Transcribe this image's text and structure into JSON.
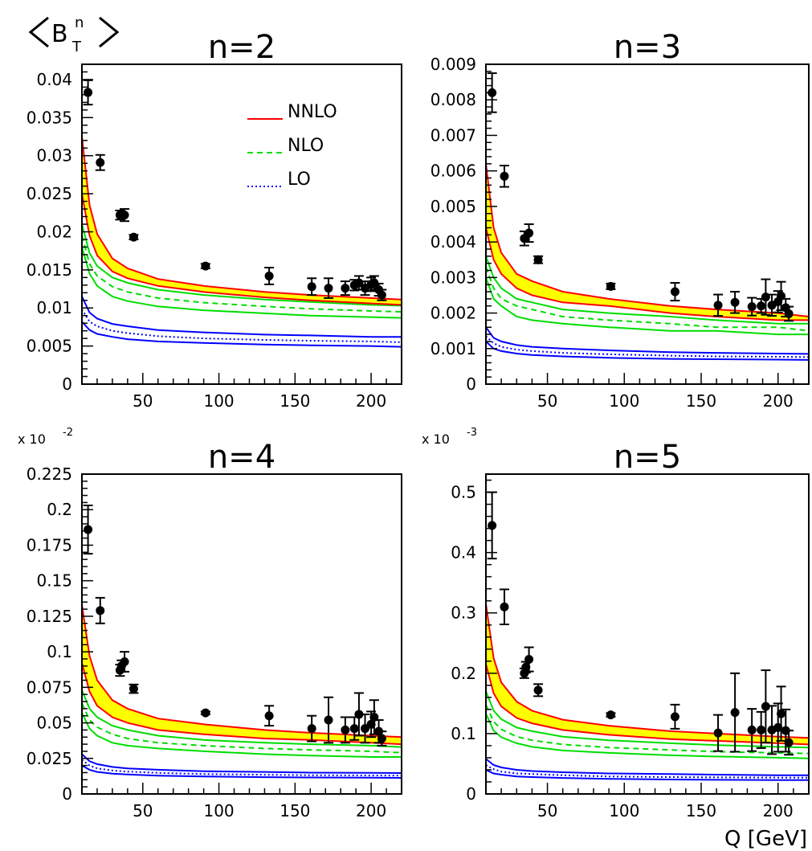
{
  "figure": {
    "ylabel_main": "B",
    "ylabel_sub": "T",
    "ylabel_sup": "n",
    "xlabel": "Q [GeV]",
    "legend": [
      {
        "label": "NNLO",
        "color": "#ff0000",
        "dash": "solid"
      },
      {
        "label": "NLO",
        "color": "#00dd00",
        "dash": "dashed"
      },
      {
        "label": "LO",
        "color": "#0000ff",
        "dash": "dotted"
      }
    ],
    "colors": {
      "band": "#ffff00",
      "nnlo": "#ff0000",
      "nlo": "#00dd00",
      "lo": "#0000ff",
      "data": "#000000"
    }
  },
  "chart_data": [
    {
      "type": "line",
      "title": "n=2",
      "exponent_label": "",
      "xlim": [
        10,
        220
      ],
      "ylim": [
        0,
        0.042
      ],
      "x_ticks": [
        50,
        100,
        150,
        200
      ],
      "x_tick_labels": [
        "50",
        "100",
        "150",
        "200"
      ],
      "y_ticks": [
        0,
        0.005,
        0.01,
        0.015,
        0.02,
        0.025,
        0.03,
        0.035,
        0.04
      ],
      "y_tick_labels": [
        "0",
        "0.005",
        "0.01",
        "0.015",
        "0.02",
        "0.025",
        "0.03",
        "0.035",
        "0.04"
      ],
      "theory": {
        "x": [
          10,
          15,
          20,
          30,
          40,
          60,
          90,
          130,
          160,
          200,
          220
        ],
        "nnlo_upper": [
          0.0325,
          0.0235,
          0.0197,
          0.0165,
          0.0152,
          0.0138,
          0.0129,
          0.0121,
          0.0117,
          0.0113,
          0.0111
        ],
        "nnlo_lower": [
          0.025,
          0.0195,
          0.0169,
          0.0148,
          0.0139,
          0.0129,
          0.0121,
          0.0114,
          0.011,
          0.0106,
          0.0104
        ],
        "nlo_upper": [
          0.021,
          0.0172,
          0.0155,
          0.014,
          0.0133,
          0.0124,
          0.0117,
          0.0111,
          0.0108,
          0.0104,
          0.0103
        ],
        "nlo_central": [
          0.0195,
          0.0158,
          0.0142,
          0.0128,
          0.0121,
          0.0113,
          0.0107,
          0.0102,
          0.0099,
          0.0096,
          0.0095
        ],
        "nlo_lower": [
          0.018,
          0.0145,
          0.0129,
          0.0115,
          0.0109,
          0.0102,
          0.0097,
          0.0093,
          0.009,
          0.0088,
          0.0087
        ],
        "lo_upper": [
          0.0115,
          0.0094,
          0.0086,
          0.0079,
          0.0076,
          0.0071,
          0.0068,
          0.0065,
          0.0064,
          0.0062,
          0.0062
        ],
        "lo_central": [
          0.0098,
          0.0082,
          0.0076,
          0.007,
          0.0067,
          0.0063,
          0.006,
          0.0058,
          0.0057,
          0.0056,
          0.0055
        ],
        "lo_lower": [
          0.0082,
          0.0071,
          0.0066,
          0.0062,
          0.0059,
          0.0056,
          0.0054,
          0.0052,
          0.0051,
          0.005,
          0.0049
        ]
      },
      "data_points": [
        {
          "x": 14,
          "y": 0.0383,
          "err": 0.0016
        },
        {
          "x": 22,
          "y": 0.0291,
          "err": 0.001
        },
        {
          "x": 35,
          "y": 0.0222,
          "err": 0.0006
        },
        {
          "x": 38,
          "y": 0.0222,
          "err": 0.0008
        },
        {
          "x": 44,
          "y": 0.0193,
          "err": 0.0003
        },
        {
          "x": 91.2,
          "y": 0.0155,
          "err": 0.0003
        },
        {
          "x": 133,
          "y": 0.0142,
          "err": 0.0011
        },
        {
          "x": 161,
          "y": 0.0128,
          "err": 0.0011
        },
        {
          "x": 172,
          "y": 0.0126,
          "err": 0.0013
        },
        {
          "x": 183,
          "y": 0.0126,
          "err": 0.0009
        },
        {
          "x": 189,
          "y": 0.013,
          "err": 0.0007
        },
        {
          "x": 192,
          "y": 0.0133,
          "err": 0.0009
        },
        {
          "x": 196,
          "y": 0.0126,
          "err": 0.0009
        },
        {
          "x": 200,
          "y": 0.0131,
          "err": 0.0009
        },
        {
          "x": 202,
          "y": 0.0133,
          "err": 0.0009
        },
        {
          "x": 205,
          "y": 0.0124,
          "err": 0.0008
        },
        {
          "x": 207,
          "y": 0.0117,
          "err": 0.0007
        }
      ]
    },
    {
      "type": "line",
      "title": "n=3",
      "exponent_label": "",
      "xlim": [
        10,
        220
      ],
      "ylim": [
        0,
        0.009
      ],
      "x_ticks": [
        50,
        100,
        150,
        200
      ],
      "x_tick_labels": [
        "50",
        "100",
        "150",
        "200"
      ],
      "y_ticks": [
        0,
        0.001,
        0.002,
        0.003,
        0.004,
        0.005,
        0.006,
        0.007,
        0.008,
        0.009
      ],
      "y_tick_labels": [
        "0",
        "0.001",
        "0.002",
        "0.003",
        "0.004",
        "0.005",
        "0.006",
        "0.007",
        "0.008",
        "0.009"
      ],
      "theory": {
        "x": [
          10,
          15,
          20,
          30,
          40,
          60,
          90,
          130,
          160,
          200,
          220
        ],
        "nnlo_upper": [
          0.0062,
          0.0044,
          0.0037,
          0.0031,
          0.0029,
          0.0026,
          0.0024,
          0.0022,
          0.0021,
          0.002,
          0.0019
        ],
        "nnlo_lower": [
          0.0044,
          0.0035,
          0.0031,
          0.0027,
          0.0025,
          0.0023,
          0.0022,
          0.002,
          0.0019,
          0.0018,
          0.0018
        ],
        "nlo_upper": [
          0.0036,
          0.003,
          0.0027,
          0.0024,
          0.0023,
          0.0021,
          0.002,
          0.0019,
          0.0018,
          0.0017,
          0.0017
        ],
        "nlo_central": [
          0.0033,
          0.0027,
          0.0024,
          0.0022,
          0.0021,
          0.0019,
          0.0018,
          0.0017,
          0.0016,
          0.0016,
          0.0015
        ],
        "nlo_lower": [
          0.003,
          0.0024,
          0.0022,
          0.0019,
          0.0018,
          0.0017,
          0.0016,
          0.0015,
          0.0015,
          0.0014,
          0.0014
        ],
        "lo_upper": [
          0.0016,
          0.0013,
          0.0012,
          0.0011,
          0.00105,
          0.001,
          0.00095,
          0.0009,
          0.00088,
          0.00086,
          0.00085
        ],
        "lo_central": [
          0.00135,
          0.00115,
          0.00105,
          0.00097,
          0.00093,
          0.00088,
          0.00084,
          0.0008,
          0.00078,
          0.00077,
          0.00076
        ],
        "lo_lower": [
          0.0012,
          0.001,
          0.00093,
          0.00086,
          0.00082,
          0.00078,
          0.00074,
          0.00071,
          0.0007,
          0.00069,
          0.00068
        ]
      },
      "data_points": [
        {
          "x": 14,
          "y": 0.0082,
          "err": 0.00055
        },
        {
          "x": 22,
          "y": 0.00585,
          "err": 0.0003
        },
        {
          "x": 35,
          "y": 0.0041,
          "err": 0.0002
        },
        {
          "x": 38,
          "y": 0.00425,
          "err": 0.00025
        },
        {
          "x": 44,
          "y": 0.0035,
          "err": 0.0001
        },
        {
          "x": 91.2,
          "y": 0.00275,
          "err": 8e-05
        },
        {
          "x": 133,
          "y": 0.0026,
          "err": 0.00025
        },
        {
          "x": 161,
          "y": 0.00222,
          "err": 0.0003
        },
        {
          "x": 172,
          "y": 0.0023,
          "err": 0.0003
        },
        {
          "x": 183,
          "y": 0.00218,
          "err": 0.00025
        },
        {
          "x": 189,
          "y": 0.0022,
          "err": 0.0002
        },
        {
          "x": 192,
          "y": 0.00245,
          "err": 0.0005
        },
        {
          "x": 196,
          "y": 0.00222,
          "err": 0.0003
        },
        {
          "x": 200,
          "y": 0.00232,
          "err": 0.0003
        },
        {
          "x": 202,
          "y": 0.00248,
          "err": 0.0004
        },
        {
          "x": 205,
          "y": 0.00215,
          "err": 0.00025
        },
        {
          "x": 207,
          "y": 0.00198,
          "err": 0.0002
        }
      ]
    },
    {
      "type": "line",
      "title": "n=4",
      "exponent_label": "x 10",
      "exponent_power": "-2",
      "xlim": [
        10,
        220
      ],
      "ylim": [
        0,
        0.225
      ],
      "x_ticks": [
        50,
        100,
        150,
        200
      ],
      "x_tick_labels": [
        "50",
        "100",
        "150",
        "200"
      ],
      "y_ticks": [
        0,
        0.025,
        0.05,
        0.075,
        0.1,
        0.125,
        0.15,
        0.175,
        0.2,
        0.225
      ],
      "y_tick_labels": [
        "0",
        "0.025",
        "0.05",
        "0.075",
        "0.1",
        "0.125",
        "0.15",
        "0.175",
        "0.2",
        "0.225"
      ],
      "theory": {
        "x": [
          10,
          15,
          20,
          30,
          40,
          60,
          90,
          130,
          160,
          200,
          220
        ],
        "nnlo_upper": [
          0.133,
          0.097,
          0.08,
          0.066,
          0.06,
          0.053,
          0.049,
          0.045,
          0.043,
          0.041,
          0.04
        ],
        "nnlo_lower": [
          0.092,
          0.072,
          0.062,
          0.054,
          0.05,
          0.045,
          0.042,
          0.039,
          0.038,
          0.036,
          0.035
        ],
        "nlo_upper": [
          0.073,
          0.06,
          0.054,
          0.048,
          0.045,
          0.041,
          0.038,
          0.036,
          0.035,
          0.034,
          0.033
        ],
        "nlo_central": [
          0.064,
          0.052,
          0.047,
          0.042,
          0.039,
          0.036,
          0.034,
          0.032,
          0.031,
          0.03,
          0.029
        ],
        "nlo_lower": [
          0.057,
          0.046,
          0.041,
          0.036,
          0.034,
          0.032,
          0.03,
          0.028,
          0.027,
          0.026,
          0.026
        ],
        "lo_upper": [
          0.028,
          0.023,
          0.021,
          0.019,
          0.018,
          0.017,
          0.016,
          0.0155,
          0.015,
          0.0148,
          0.0147
        ],
        "lo_central": [
          0.024,
          0.02,
          0.018,
          0.0165,
          0.0157,
          0.0148,
          0.014,
          0.0135,
          0.0132,
          0.013,
          0.0129
        ],
        "lo_lower": [
          0.02,
          0.017,
          0.0155,
          0.0143,
          0.0137,
          0.0129,
          0.0123,
          0.0118,
          0.0116,
          0.0114,
          0.0113
        ]
      },
      "data_points": [
        {
          "x": 14,
          "y": 0.186,
          "err": 0.017
        },
        {
          "x": 22,
          "y": 0.129,
          "err": 0.009
        },
        {
          "x": 35,
          "y": 0.087,
          "err": 0.004
        },
        {
          "x": 36,
          "y": 0.09,
          "err": 0.004
        },
        {
          "x": 38,
          "y": 0.093,
          "err": 0.007
        },
        {
          "x": 44,
          "y": 0.074,
          "err": 0.003
        },
        {
          "x": 91.2,
          "y": 0.057,
          "err": 0.001
        },
        {
          "x": 133,
          "y": 0.055,
          "err": 0.007
        },
        {
          "x": 161,
          "y": 0.046,
          "err": 0.009
        },
        {
          "x": 172,
          "y": 0.052,
          "err": 0.016
        },
        {
          "x": 183,
          "y": 0.045,
          "err": 0.009
        },
        {
          "x": 189,
          "y": 0.046,
          "err": 0.008
        },
        {
          "x": 192,
          "y": 0.056,
          "err": 0.015
        },
        {
          "x": 196,
          "y": 0.046,
          "err": 0.01
        },
        {
          "x": 200,
          "y": 0.049,
          "err": 0.009
        },
        {
          "x": 202,
          "y": 0.054,
          "err": 0.012
        },
        {
          "x": 205,
          "y": 0.044,
          "err": 0.008
        },
        {
          "x": 207,
          "y": 0.039,
          "err": 0.005
        }
      ]
    },
    {
      "type": "line",
      "title": "n=5",
      "exponent_label": "x 10",
      "exponent_power": "-3",
      "xlim": [
        10,
        220
      ],
      "ylim": [
        0,
        0.53
      ],
      "x_ticks": [
        50,
        100,
        150,
        200
      ],
      "x_tick_labels": [
        "50",
        "100",
        "150",
        "200"
      ],
      "y_ticks": [
        0,
        0.1,
        0.2,
        0.3,
        0.4,
        0.5
      ],
      "y_tick_labels": [
        "0",
        "0.1",
        "0.2",
        "0.3",
        "0.4",
        "0.5"
      ],
      "theory": {
        "x": [
          10,
          15,
          20,
          30,
          40,
          60,
          90,
          130,
          160,
          200,
          220
        ],
        "nnlo_upper": [
          0.315,
          0.225,
          0.185,
          0.153,
          0.138,
          0.123,
          0.113,
          0.104,
          0.1,
          0.095,
          0.093
        ],
        "nnlo_lower": [
          0.215,
          0.167,
          0.145,
          0.126,
          0.117,
          0.106,
          0.098,
          0.091,
          0.088,
          0.084,
          0.082
        ],
        "nlo_upper": [
          0.17,
          0.138,
          0.124,
          0.11,
          0.104,
          0.095,
          0.089,
          0.084,
          0.081,
          0.078,
          0.077
        ],
        "nlo_central": [
          0.148,
          0.12,
          0.107,
          0.095,
          0.089,
          0.082,
          0.077,
          0.073,
          0.07,
          0.068,
          0.067
        ],
        "nlo_lower": [
          0.133,
          0.105,
          0.094,
          0.084,
          0.078,
          0.072,
          0.068,
          0.064,
          0.062,
          0.06,
          0.059
        ],
        "lo_upper": [
          0.058,
          0.048,
          0.044,
          0.04,
          0.038,
          0.036,
          0.034,
          0.033,
          0.032,
          0.031,
          0.031
        ],
        "lo_central": [
          0.048,
          0.041,
          0.037,
          0.034,
          0.033,
          0.031,
          0.029,
          0.028,
          0.0275,
          0.027,
          0.027
        ],
        "lo_lower": [
          0.04,
          0.034,
          0.032,
          0.029,
          0.028,
          0.0265,
          0.025,
          0.024,
          0.0235,
          0.023,
          0.023
        ]
      },
      "data_points": [
        {
          "x": 14,
          "y": 0.445,
          "err": 0.055
        },
        {
          "x": 22,
          "y": 0.31,
          "err": 0.029
        },
        {
          "x": 35,
          "y": 0.2,
          "err": 0.008
        },
        {
          "x": 36,
          "y": 0.21,
          "err": 0.009
        },
        {
          "x": 38,
          "y": 0.223,
          "err": 0.02
        },
        {
          "x": 44,
          "y": 0.172,
          "err": 0.01
        },
        {
          "x": 91.2,
          "y": 0.131,
          "err": 0.003
        },
        {
          "x": 133,
          "y": 0.128,
          "err": 0.02
        },
        {
          "x": 161,
          "y": 0.101,
          "err": 0.03
        },
        {
          "x": 172,
          "y": 0.135,
          "err": 0.065
        },
        {
          "x": 183,
          "y": 0.106,
          "err": 0.035
        },
        {
          "x": 189,
          "y": 0.106,
          "err": 0.03
        },
        {
          "x": 192,
          "y": 0.145,
          "err": 0.06
        },
        {
          "x": 196,
          "y": 0.106,
          "err": 0.04
        },
        {
          "x": 200,
          "y": 0.11,
          "err": 0.04
        },
        {
          "x": 202,
          "y": 0.133,
          "err": 0.045
        },
        {
          "x": 205,
          "y": 0.105,
          "err": 0.035
        },
        {
          "x": 207,
          "y": 0.085,
          "err": 0.02
        }
      ]
    }
  ]
}
